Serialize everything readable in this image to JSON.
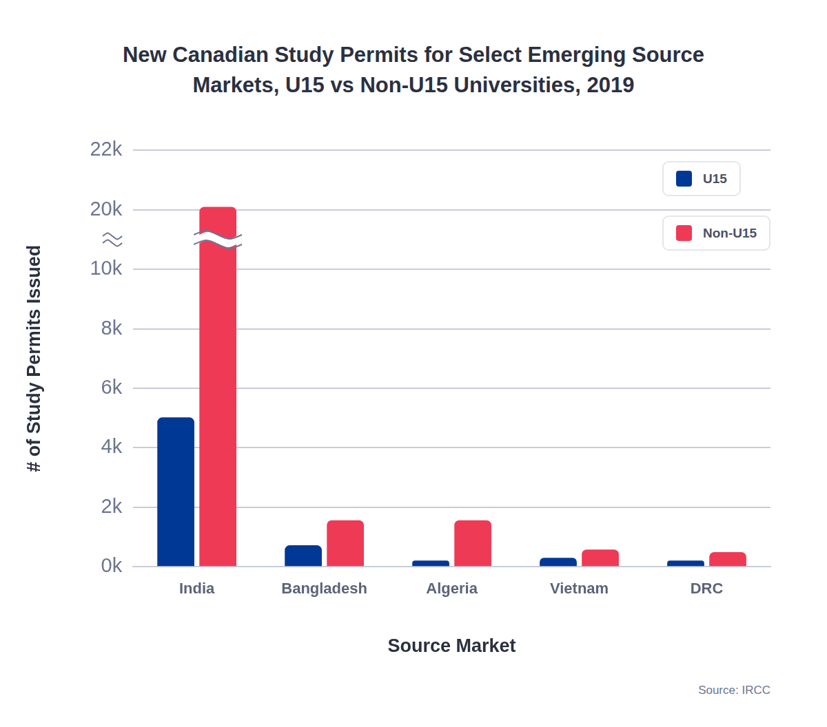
{
  "chart_data": {
    "type": "bar",
    "title": "New Canadian Study Permits for Select Emerging Source Markets, U15 vs Non-U15 Universities, 2019",
    "x_label": "Source Market",
    "y_label": "# of Study Permits Issued",
    "source": "Source: IRCC",
    "categories": [
      "India",
      "Bangladesh",
      "Algeria",
      "Vietnam",
      "DRC"
    ],
    "series": [
      {
        "name": "U15",
        "color": "#003896",
        "values": [
          5020,
          720,
          210,
          300,
          210
        ]
      },
      {
        "name": "Non-U15",
        "color": "#ef3a55",
        "values": [
          20100,
          1560,
          1560,
          580,
          490
        ]
      }
    ],
    "ylim": [
      0,
      22000
    ],
    "yticks": [
      {
        "value": 0,
        "label": "0k"
      },
      {
        "value": 2000,
        "label": "2k"
      },
      {
        "value": 4000,
        "label": "4k"
      },
      {
        "value": 6000,
        "label": "6k"
      },
      {
        "value": 8000,
        "label": "8k"
      },
      {
        "value": 10000,
        "label": "10k"
      },
      {
        "value": 20000,
        "label": "20k"
      },
      {
        "value": 22000,
        "label": "22k"
      }
    ],
    "grid": true,
    "legend": "top right"
  }
}
